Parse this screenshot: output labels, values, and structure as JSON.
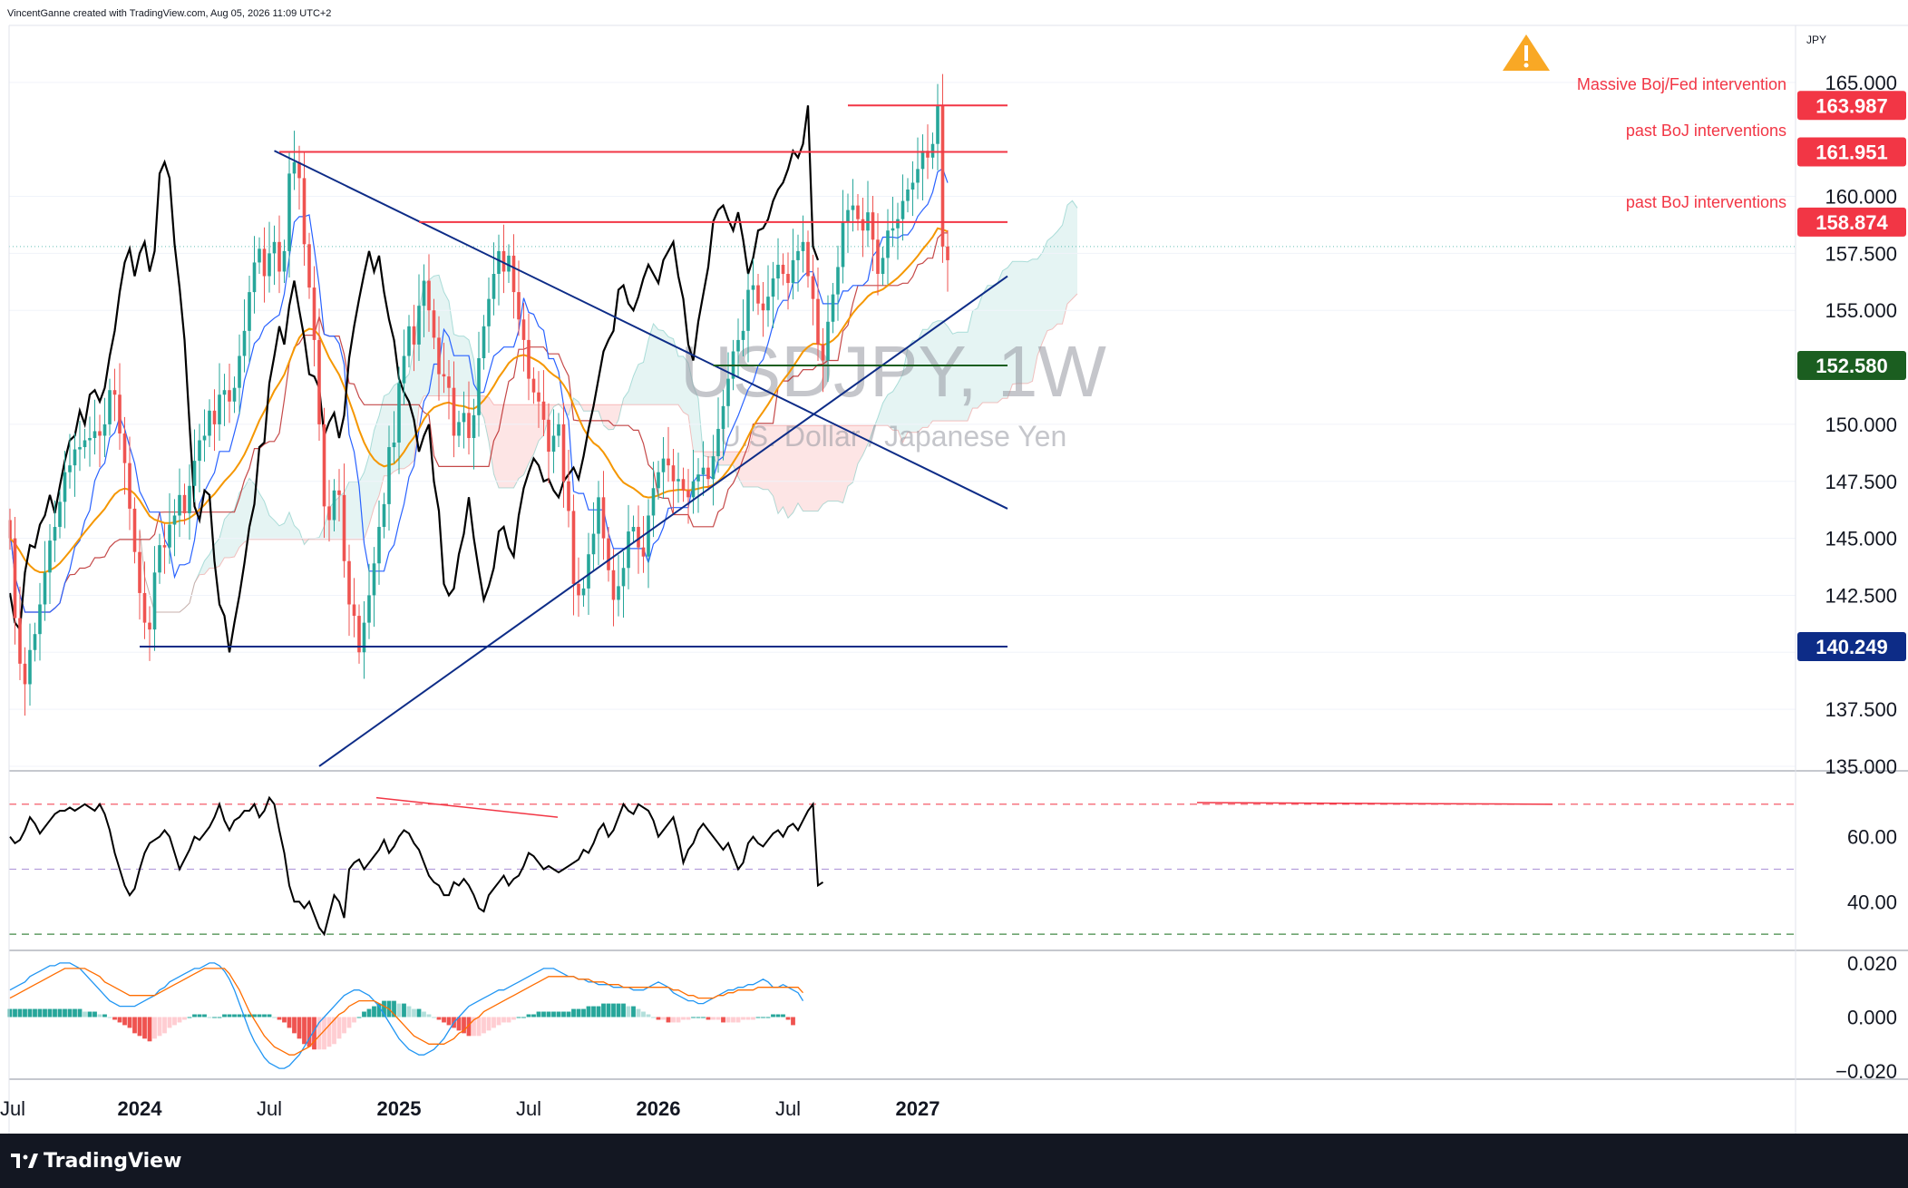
{
  "header": {
    "caption": "VincentGanne created with TradingView.com, Aug 05, 2026 11:09 UTC+2"
  },
  "footer": {
    "brand": "TradingView"
  },
  "colors": {
    "up": "#26a69a",
    "down": "#ef5350",
    "upCloud": "#26a69a",
    "downCloud": "#f7a8a8",
    "blueLine": "#0d2c87",
    "red": "#f23645",
    "green": "#1b5e20",
    "orange": "#f59700",
    "tenkan": "#2962ff"
  },
  "chart_data": [
    {
      "type": "candlestick",
      "title": "USDJPY, 1W",
      "subtitle": "U.S. Dollar / Japanese Yen",
      "currency": "JPY",
      "x_ticks": [
        "Jul",
        "2024",
        "Jul",
        "2025",
        "Jul",
        "2026",
        "Jul",
        "2027"
      ],
      "x_tick_weeks": [
        0,
        26,
        52,
        78,
        104,
        130,
        156,
        182
      ],
      "y_ticks": [
        "135.000",
        "137.500",
        "140.000",
        "142.500",
        "145.000",
        "147.500",
        "150.000",
        "155.000",
        "157.500",
        "160.000",
        "165.000"
      ],
      "ylim": [
        134.8,
        167.5
      ],
      "annotations": [
        "Massive Boj/Fed intervention",
        "past BoJ interventions",
        "past BoJ interventions"
      ],
      "price_labels": [
        {
          "value": "163.987",
          "price": 163.987,
          "color": "#f23645"
        },
        {
          "value": "161.951",
          "price": 161.951,
          "color": "#f23645"
        },
        {
          "value": "158.874",
          "price": 158.874,
          "color": "#f23645"
        },
        {
          "value": "152.580",
          "price": 152.58,
          "color": "#1b5e20"
        },
        {
          "value": "140.249",
          "price": 140.249,
          "color": "#0d2c87"
        }
      ],
      "closes": [
        145.0,
        141.5,
        139.5,
        138.6,
        140.1,
        140.8,
        142.1,
        143.5,
        144.9,
        145.5,
        146.6,
        147.9,
        148.2,
        148.9,
        149.0,
        149.3,
        149.4,
        149.7,
        149.5,
        150.0,
        151.5,
        151.3,
        149.6,
        148.3,
        146.3,
        144.4,
        142.6,
        141.3,
        141.0,
        143.5,
        144.7,
        144.6,
        145.6,
        146.0,
        146.9,
        146.1,
        147.3,
        148.4,
        149.3,
        149.5,
        150.6,
        150.0,
        151.3,
        151.5,
        151.0,
        151.6,
        153.0,
        154.1,
        155.8,
        157.1,
        157.7,
        156.5,
        157.5,
        158.0,
        156.7,
        157.6,
        161.0,
        161.5,
        160.8,
        157.9,
        156.0,
        153.7,
        150.0,
        146.4,
        145.8,
        147.1,
        146.9,
        144.0,
        142.1,
        141.6,
        140.0,
        141.3,
        142.5,
        143.9,
        145.5,
        146.5,
        149.0,
        149.2,
        151.8,
        153.0,
        154.3,
        153.5,
        155.2,
        156.3,
        155.0,
        153.8,
        152.2,
        152.1,
        151.6,
        149.5,
        150.1,
        150.5,
        149.4,
        150.4,
        152.9,
        154.3,
        155.5,
        156.6,
        157.6,
        156.7,
        157.4,
        155.8,
        154.6,
        153.7,
        152.0,
        151.4,
        151.0,
        150.2,
        148.8,
        149.5,
        150.0,
        147.5,
        146.2,
        143.0,
        142.5,
        142.8,
        144.3,
        145.2,
        146.8,
        145.0,
        143.6,
        142.3,
        142.9,
        143.7,
        145.3,
        145.5,
        144.6,
        144.2,
        146.0,
        147.2,
        147.9,
        148.5,
        148.2,
        147.5,
        147.6,
        147.1,
        146.8,
        147.5,
        147.8,
        148.1,
        147.6,
        148.6,
        149.8,
        150.8,
        152.0,
        153.2,
        153.7,
        154.1,
        155.9,
        156.1,
        155.3,
        155.0,
        155.6,
        156.4,
        157.0,
        156.6,
        156.2,
        157.2,
        157.6,
        158.0,
        156.5,
        155.5,
        153.5,
        152.8,
        154.5,
        155.7,
        156.9,
        158.9,
        159.4,
        159.6,
        159.0,
        158.5,
        159.3,
        158.1,
        156.6,
        157.3,
        158.5,
        158.6,
        159.0,
        159.8,
        160.3,
        160.6,
        161.2,
        162.0,
        161.7,
        162.3,
        163.987,
        157.8,
        157.2
      ],
      "lines": [
        {
          "name": "",
          "kind": "trendline",
          "p1": {
            "week": 26,
            "price": 140.249
          },
          "p2": {
            "week": 200,
            "price": 140.249
          },
          "color": "#0d2c87"
        },
        {
          "name": "",
          "kind": "trendline",
          "p1": {
            "week": 53,
            "price": 162.0
          },
          "p2": {
            "week": 200,
            "price": 146.3
          },
          "color": "#0d2c87"
        },
        {
          "name": "",
          "kind": "trendline",
          "p1": {
            "week": 62,
            "price": 135.0
          },
          "p2": {
            "week": 200,
            "price": 156.5
          },
          "color": "#0d2c87"
        },
        {
          "name": "",
          "kind": "level",
          "p1": {
            "week": 168,
            "price": 163.987
          },
          "p2": {
            "week": 200,
            "price": 163.987
          },
          "color": "#f23645"
        },
        {
          "name": "",
          "kind": "level",
          "p1": {
            "week": 54,
            "price": 161.951
          },
          "p2": {
            "week": 200,
            "price": 161.951
          },
          "color": "#f23645"
        },
        {
          "name": "",
          "kind": "level",
          "p1": {
            "week": 82,
            "price": 158.874
          },
          "p2": {
            "week": 200,
            "price": 158.874
          },
          "color": "#f23645"
        },
        {
          "name": "",
          "kind": "level",
          "p1": {
            "week": 141,
            "price": 152.58
          },
          "p2": {
            "week": 200,
            "price": 152.58
          },
          "color": "#1b5e20"
        }
      ]
    },
    {
      "type": "line",
      "panel": "RSI",
      "y_ticks": [
        "40.00",
        "60.00"
      ],
      "levels": [
        70,
        50,
        30
      ],
      "ylim": [
        25,
        80
      ],
      "values": [
        60,
        58,
        59,
        62,
        66,
        64,
        61,
        63,
        65,
        67,
        68,
        68,
        69,
        68,
        69,
        70,
        69,
        68,
        70,
        67,
        62,
        55,
        50,
        45,
        42,
        44,
        50,
        55,
        58,
        59,
        60,
        62,
        60,
        55,
        50,
        53,
        56,
        60,
        59,
        61,
        63,
        66,
        70,
        65,
        62,
        65,
        66,
        68,
        68,
        70,
        66,
        68,
        72,
        70,
        62,
        55,
        45,
        40,
        40,
        38,
        40,
        36,
        32,
        30,
        36,
        42,
        40,
        35,
        50,
        52,
        53,
        50,
        52,
        54,
        56,
        59,
        55,
        57,
        60,
        62,
        61,
        58,
        56,
        52,
        48,
        46,
        45,
        42,
        42,
        46,
        45,
        47,
        45,
        42,
        38,
        37,
        42,
        44,
        46,
        48,
        45,
        47,
        48,
        51,
        55,
        54,
        52,
        50,
        51,
        50,
        49,
        50,
        51,
        52,
        53,
        56,
        55,
        58,
        62,
        64,
        60,
        62,
        66,
        70,
        68,
        67,
        70,
        69,
        68,
        65,
        60,
        62,
        64,
        66,
        60,
        52,
        56,
        58,
        62,
        64,
        62,
        60,
        58,
        56,
        58,
        54,
        50,
        52,
        58,
        60,
        58,
        57,
        59,
        61,
        62,
        60,
        63,
        64,
        62,
        65,
        68,
        70,
        45,
        46
      ]
    },
    {
      "type": "bar",
      "panel": "MACD",
      "y_ticks": [
        "0.020",
        "0.000",
        "−0.020"
      ],
      "ylim": [
        -0.023,
        0.024
      ],
      "values": [
        0.003,
        0.003,
        0.003,
        0.003,
        0.003,
        0.003,
        0.003,
        0.003,
        0.003,
        0.003,
        0.003,
        0.003,
        0.003,
        0.003,
        0.003,
        0.002,
        0.002,
        0.002,
        0.001,
        0.001,
        0.0,
        -0.001,
        -0.002,
        -0.003,
        -0.004,
        -0.006,
        -0.007,
        -0.008,
        -0.009,
        -0.008,
        -0.007,
        -0.006,
        -0.004,
        -0.003,
        -0.002,
        -0.001,
        0.0,
        0.001,
        0.001,
        0.001,
        0.0,
        0.0,
        0.0,
        0.001,
        0.001,
        0.001,
        0.001,
        0.001,
        0.001,
        0.001,
        0.001,
        0.001,
        0.001,
        0.0,
        -0.001,
        -0.002,
        -0.004,
        -0.006,
        -0.008,
        -0.01,
        -0.011,
        -0.012,
        -0.012,
        -0.012,
        -0.011,
        -0.01,
        -0.008,
        -0.006,
        -0.004,
        -0.002,
        0.0,
        0.002,
        0.003,
        0.004,
        0.005,
        0.006,
        0.006,
        0.006,
        0.005,
        0.005,
        0.004,
        0.003,
        0.003,
        0.002,
        0.001,
        0.0,
        -0.001,
        -0.002,
        -0.003,
        -0.004,
        -0.005,
        -0.006,
        -0.007,
        -0.007,
        -0.007,
        -0.006,
        -0.005,
        -0.004,
        -0.003,
        -0.002,
        -0.002,
        -0.001,
        0.0,
        0.0,
        0.001,
        0.001,
        0.002,
        0.002,
        0.002,
        0.002,
        0.002,
        0.002,
        0.002,
        0.003,
        0.003,
        0.003,
        0.004,
        0.004,
        0.004,
        0.005,
        0.005,
        0.005,
        0.005,
        0.005,
        0.004,
        0.004,
        0.003,
        0.002,
        0.001,
        0.0,
        -0.001,
        -0.001,
        -0.002,
        -0.002,
        -0.002,
        -0.001,
        -0.001,
        0.0,
        0.0,
        0.0,
        -0.001,
        -0.001,
        -0.001,
        -0.002,
        -0.002,
        -0.002,
        -0.002,
        -0.001,
        -0.001,
        -0.001,
        0.0,
        0.0,
        0.0,
        0.001,
        0.001,
        0.001,
        -0.001,
        -0.003
      ],
      "macd": [
        0.01,
        0.011,
        0.012,
        0.013,
        0.015,
        0.016,
        0.017,
        0.018,
        0.019,
        0.019,
        0.02,
        0.02,
        0.02,
        0.019,
        0.018,
        0.016,
        0.014,
        0.012,
        0.01,
        0.008,
        0.006,
        0.005,
        0.004,
        0.004,
        0.004,
        0.004,
        0.005,
        0.006,
        0.007,
        0.008,
        0.01,
        0.011,
        0.013,
        0.014,
        0.015,
        0.016,
        0.017,
        0.018,
        0.018,
        0.019,
        0.02,
        0.02,
        0.019,
        0.017,
        0.014,
        0.01,
        0.005,
        0.0,
        -0.005,
        -0.009,
        -0.012,
        -0.015,
        -0.017,
        -0.018,
        -0.019,
        -0.019,
        -0.018,
        -0.016,
        -0.014,
        -0.011,
        -0.008,
        -0.005,
        -0.002,
        0.0,
        0.002,
        0.004,
        0.006,
        0.008,
        0.009,
        0.01,
        0.01,
        0.009,
        0.008,
        0.006,
        0.004,
        0.001,
        -0.002,
        -0.005,
        -0.008,
        -0.01,
        -0.012,
        -0.013,
        -0.014,
        -0.014,
        -0.013,
        -0.012,
        -0.01,
        -0.008,
        -0.005,
        -0.002,
        0.0,
        0.002,
        0.004,
        0.005,
        0.006,
        0.007,
        0.008,
        0.009,
        0.01,
        0.01,
        0.011,
        0.012,
        0.013,
        0.014,
        0.015,
        0.016,
        0.017,
        0.018,
        0.018,
        0.018,
        0.017,
        0.016,
        0.015,
        0.015,
        0.014,
        0.014,
        0.013,
        0.013,
        0.012,
        0.012,
        0.012,
        0.011,
        0.011,
        0.011,
        0.011,
        0.01,
        0.01,
        0.01,
        0.011,
        0.012,
        0.013,
        0.012,
        0.011,
        0.009,
        0.008,
        0.007,
        0.006,
        0.006,
        0.005,
        0.005,
        0.006,
        0.007,
        0.008,
        0.009,
        0.01,
        0.01,
        0.011,
        0.011,
        0.012,
        0.012,
        0.013,
        0.014,
        0.013,
        0.011,
        0.011,
        0.012,
        0.011,
        0.01,
        0.009,
        0.006
      ],
      "signal": [
        0.007,
        0.008,
        0.009,
        0.01,
        0.011,
        0.012,
        0.013,
        0.014,
        0.015,
        0.016,
        0.017,
        0.018,
        0.018,
        0.018,
        0.018,
        0.018,
        0.017,
        0.016,
        0.015,
        0.013,
        0.012,
        0.011,
        0.01,
        0.009,
        0.008,
        0.008,
        0.008,
        0.008,
        0.008,
        0.008,
        0.009,
        0.01,
        0.011,
        0.012,
        0.013,
        0.014,
        0.015,
        0.016,
        0.017,
        0.018,
        0.018,
        0.018,
        0.018,
        0.018,
        0.016,
        0.013,
        0.01,
        0.006,
        0.002,
        -0.001,
        -0.004,
        -0.007,
        -0.009,
        -0.011,
        -0.012,
        -0.013,
        -0.014,
        -0.014,
        -0.013,
        -0.012,
        -0.011,
        -0.009,
        -0.007,
        -0.005,
        -0.003,
        -0.001,
        0.001,
        0.002,
        0.004,
        0.005,
        0.006,
        0.006,
        0.006,
        0.006,
        0.005,
        0.004,
        0.003,
        0.001,
        -0.001,
        -0.003,
        -0.005,
        -0.007,
        -0.008,
        -0.009,
        -0.01,
        -0.01,
        -0.01,
        -0.01,
        -0.009,
        -0.008,
        -0.006,
        -0.005,
        -0.003,
        -0.001,
        0.0,
        0.002,
        0.003,
        0.004,
        0.005,
        0.006,
        0.007,
        0.008,
        0.009,
        0.01,
        0.011,
        0.012,
        0.013,
        0.014,
        0.015,
        0.015,
        0.015,
        0.015,
        0.015,
        0.015,
        0.014,
        0.014,
        0.014,
        0.013,
        0.013,
        0.013,
        0.012,
        0.012,
        0.012,
        0.011,
        0.011,
        0.011,
        0.011,
        0.011,
        0.011,
        0.011,
        0.011,
        0.011,
        0.011,
        0.01,
        0.01,
        0.009,
        0.008,
        0.008,
        0.007,
        0.007,
        0.007,
        0.007,
        0.008,
        0.008,
        0.009,
        0.009,
        0.01,
        0.01,
        0.01,
        0.01,
        0.011,
        0.011,
        0.011,
        0.011,
        0.011,
        0.011,
        0.011,
        0.011,
        0.011,
        0.009
      ]
    }
  ]
}
